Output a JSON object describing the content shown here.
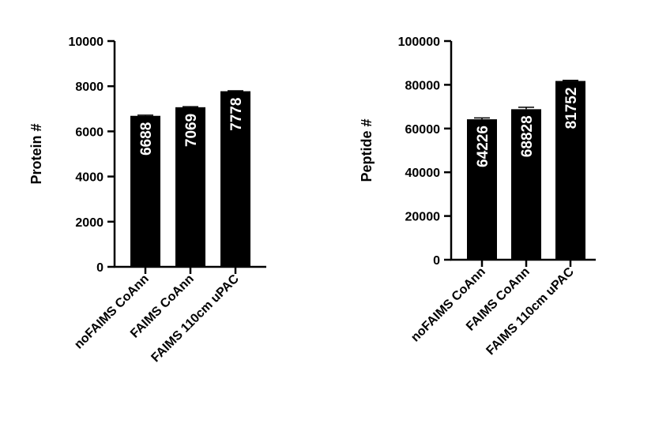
{
  "chart_data": [
    {
      "type": "bar",
      "categories": [
        "noFAIMS CoAnn",
        "FAIMS CoAnn",
        "FAIMS 110cm uPAC"
      ],
      "values": [
        6688,
        7069,
        7778
      ],
      "error": [
        30,
        25,
        20
      ],
      "ylabel": "Protein #",
      "xlabel": "",
      "ylim": [
        0,
        10000
      ],
      "yticks": [
        0,
        2000,
        4000,
        6000,
        8000,
        10000
      ],
      "data_labels": [
        "6688",
        "7069",
        "7778"
      ],
      "bar_color": "#000000",
      "grid": false
    },
    {
      "type": "bar",
      "categories": [
        "noFAIMS CoAnn",
        "FAIMS CoAnn",
        "FAIMS 110cm uPAC"
      ],
      "values": [
        64226,
        68828,
        81752
      ],
      "error": [
        600,
        900,
        300
      ],
      "ylabel": "Peptide #",
      "xlabel": "",
      "ylim": [
        0,
        100000
      ],
      "yticks": [
        0,
        20000,
        40000,
        60000,
        80000,
        100000
      ],
      "data_labels": [
        "64226",
        "68828",
        "81752"
      ],
      "bar_color": "#000000",
      "grid": false
    }
  ]
}
